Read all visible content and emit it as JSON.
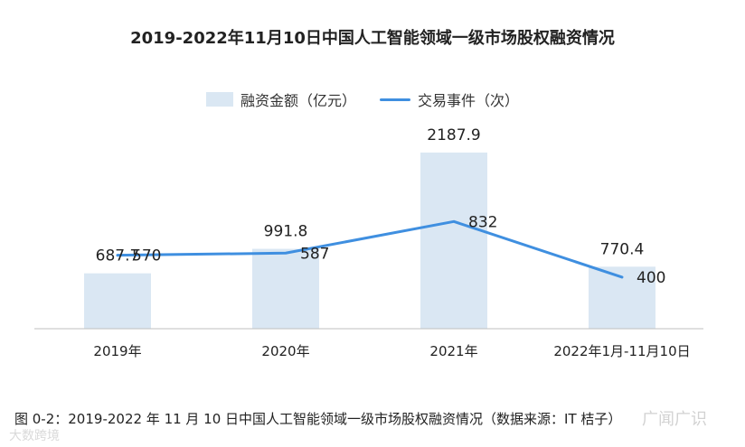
{
  "chart_data": {
    "type": "bar",
    "title": "2019-2022年11月10日中国人工智能领域一级市场股权融资情况",
    "categories": [
      "2019年",
      "2020年",
      "2021年",
      "2022年1月-11月10日"
    ],
    "series": [
      {
        "name": "融资金额（亿元）",
        "type": "bar",
        "values": [
          687.7,
          991.8,
          2187.9,
          770.4
        ],
        "labels": [
          "687.7",
          "991.8",
          "2187.9",
          "770.4"
        ],
        "color": "#dae7f3"
      },
      {
        "name": "交易事件（次）",
        "type": "line",
        "values": [
          570,
          587,
          832,
          400
        ],
        "labels": [
          "570",
          "587",
          "832",
          "400"
        ],
        "color": "#3f8fe0"
      }
    ],
    "bar_ylim": [
      0,
      2400
    ],
    "line_ylim": [
      0,
      1500
    ],
    "legend_position": "top-center",
    "grid": false
  },
  "caption": "图 0-2：2019-2022 年 11 月 10 日中国人工智能领域一级市场股权融资情况（数据来源：IT 桔子）",
  "watermark_right": "广闻广识",
  "watermark_left": "大数跨境"
}
